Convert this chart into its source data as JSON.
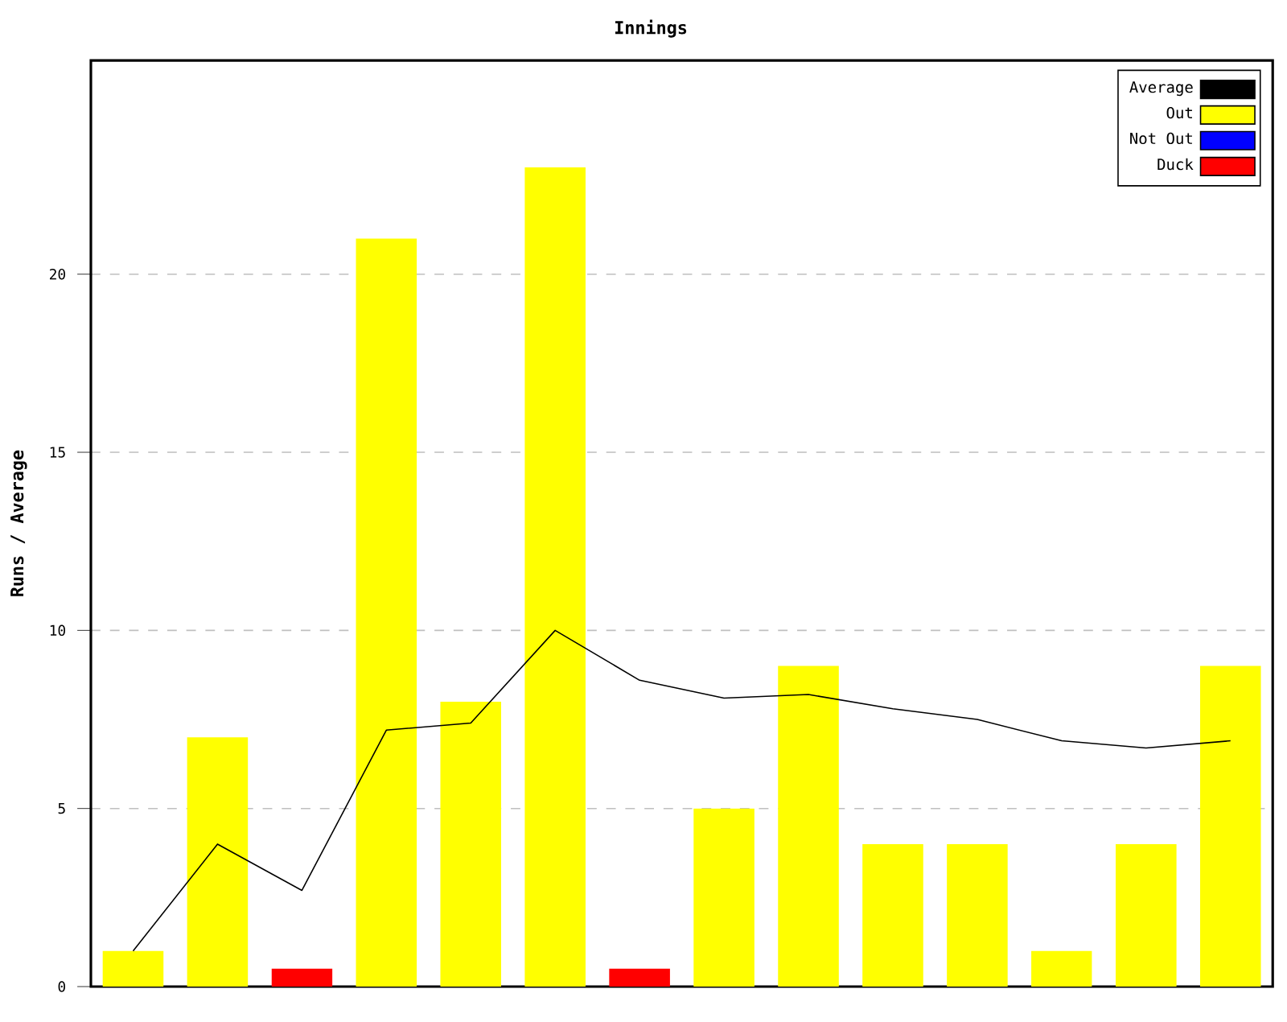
{
  "chart_data": {
    "type": "bar",
    "title": "Innings",
    "ylabel": "Runs / Average",
    "categories": [
      null,
      null,
      null,
      null,
      null,
      null,
      null,
      null,
      null,
      null,
      null,
      null,
      null,
      null
    ],
    "series": [
      {
        "name": "Average",
        "type": "line",
        "color": "#000000",
        "values": [
          1,
          4,
          2.7,
          7.2,
          7.4,
          10,
          8.6,
          8.1,
          8.2,
          7.8,
          7.5,
          6.9,
          6.7,
          6.9
        ]
      },
      {
        "name": "Out",
        "color": "#ffff00",
        "values": [
          1,
          7,
          null,
          21,
          8,
          23,
          null,
          5,
          9,
          4,
          4,
          1,
          4,
          9
        ]
      },
      {
        "name": "Not Out",
        "color": "#0000ff",
        "values": [
          null,
          null,
          null,
          null,
          null,
          null,
          null,
          null,
          null,
          null,
          null,
          null,
          null,
          null
        ]
      },
      {
        "name": "Duck",
        "color": "#ff0000",
        "values": [
          null,
          null,
          0.5,
          null,
          null,
          null,
          0.5,
          null,
          null,
          null,
          null,
          null,
          null,
          null
        ]
      }
    ],
    "ylim": [
      0,
      26
    ],
    "yticks": [
      0,
      5,
      10,
      15,
      20
    ],
    "grid": "y",
    "legend": "top right",
    "tick_labels": "y",
    "marker": "none"
  }
}
